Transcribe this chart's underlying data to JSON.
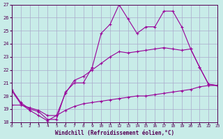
{
  "xlabel": "Windchill (Refroidissement éolien,°C)",
  "bg_color": "#c8ece8",
  "grid_color": "#aaaacc",
  "line_color": "#990099",
  "xlim": [
    0,
    23
  ],
  "ylim": [
    18,
    27
  ],
  "xticks": [
    0,
    1,
    2,
    3,
    4,
    5,
    6,
    7,
    8,
    9,
    10,
    11,
    12,
    13,
    14,
    15,
    16,
    17,
    18,
    19,
    20,
    21,
    22,
    23
  ],
  "yticks": [
    18,
    19,
    20,
    21,
    22,
    23,
    24,
    25,
    26,
    27
  ],
  "line1_x": [
    0,
    1,
    2,
    3,
    4,
    5,
    6,
    7,
    8,
    9,
    10,
    11,
    12,
    13,
    14,
    15,
    16,
    17,
    18,
    19,
    20,
    21,
    22,
    23
  ],
  "line1_y": [
    20.5,
    19.5,
    19.0,
    18.8,
    18.2,
    18.2,
    20.3,
    21.0,
    21.0,
    22.2,
    24.8,
    25.5,
    27.0,
    25.9,
    24.8,
    25.3,
    25.3,
    26.5,
    26.5,
    25.3,
    23.6,
    22.2,
    20.9,
    20.8
  ],
  "line2_x": [
    0,
    1,
    2,
    3,
    4,
    5,
    6,
    7,
    8,
    9,
    10,
    11,
    12,
    13,
    14,
    15,
    16,
    17,
    18,
    19,
    20,
    21,
    22,
    23
  ],
  "line2_y": [
    20.4,
    19.4,
    18.9,
    18.5,
    18.1,
    18.5,
    20.2,
    21.2,
    21.5,
    22.0,
    22.5,
    23.0,
    23.4,
    23.3,
    23.4,
    23.5,
    23.6,
    23.7,
    23.6,
    23.5,
    23.6,
    22.2,
    20.9,
    20.8
  ],
  "line3_x": [
    0,
    1,
    2,
    3,
    4,
    5,
    6,
    7,
    8,
    9,
    10,
    11,
    12,
    13,
    14,
    15,
    16,
    17,
    18,
    19,
    20,
    21,
    22,
    23
  ],
  "line3_y": [
    19.3,
    19.3,
    19.1,
    18.9,
    18.5,
    18.5,
    18.9,
    19.2,
    19.4,
    19.5,
    19.6,
    19.7,
    19.8,
    19.9,
    20.0,
    20.0,
    20.1,
    20.2,
    20.3,
    20.4,
    20.5,
    20.7,
    20.8,
    20.8
  ]
}
